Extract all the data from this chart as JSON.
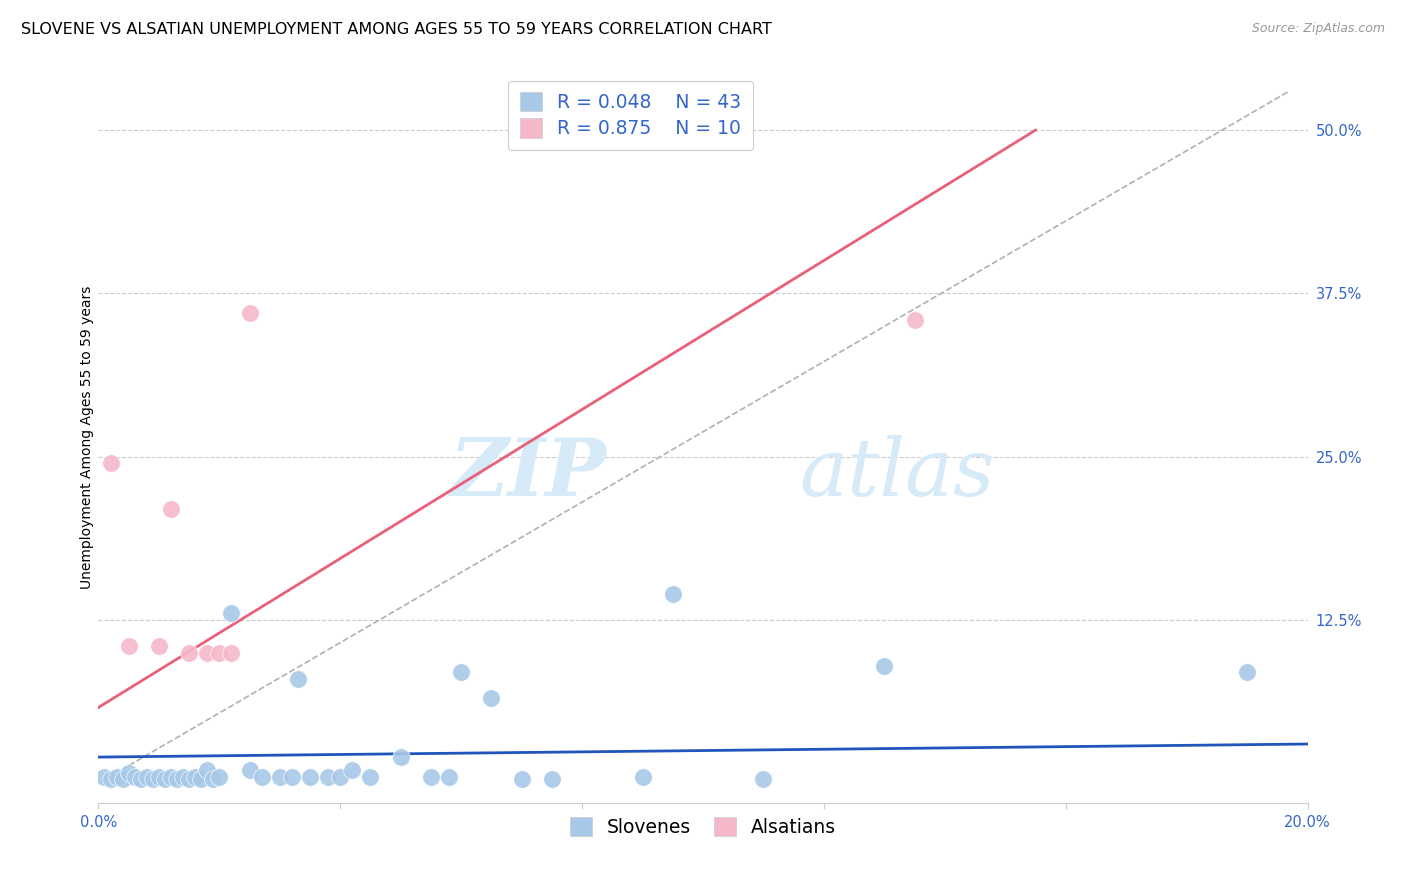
{
  "title": "SLOVENE VS ALSATIAN UNEMPLOYMENT AMONG AGES 55 TO 59 YEARS CORRELATION CHART",
  "source": "Source: ZipAtlas.com",
  "ylabel": "Unemployment Among Ages 55 to 59 years",
  "xlim": [
    0.0,
    0.2
  ],
  "ylim": [
    -0.015,
    0.545
  ],
  "xticks": [
    0.0,
    0.04,
    0.08,
    0.12,
    0.16,
    0.2
  ],
  "ytick_positions": [
    0.125,
    0.25,
    0.375,
    0.5
  ],
  "yticklabels": [
    "12.5%",
    "25.0%",
    "37.5%",
    "50.0%"
  ],
  "grid_color": "#cccccc",
  "watermark_zip": "ZIP",
  "watermark_atlas": "atlas",
  "watermark_color": "#d6eaf8",
  "slovene_color": "#a8c8e8",
  "alsatian_color": "#f5b8c8",
  "slovene_line_color": "#2255bb",
  "alsatian_line_color": "#e8607a",
  "trendline_color_dashed": "#b0b0b0",
  "legend_text_color": "#3366cc",
  "legend_R_slovene": "R = 0.048",
  "legend_N_slovene": "N = 43",
  "legend_R_alsatian": "R = 0.875",
  "legend_N_alsatian": "N = 10",
  "slovene_points_x": [
    0.001,
    0.002,
    0.003,
    0.004,
    0.005,
    0.006,
    0.007,
    0.008,
    0.009,
    0.01,
    0.011,
    0.012,
    0.013,
    0.014,
    0.015,
    0.016,
    0.017,
    0.018,
    0.019,
    0.02,
    0.022,
    0.025,
    0.027,
    0.03,
    0.032,
    0.033,
    0.035,
    0.038,
    0.04,
    0.042,
    0.045,
    0.05,
    0.055,
    0.058,
    0.06,
    0.065,
    0.07,
    0.075,
    0.09,
    0.095,
    0.11,
    0.13,
    0.19
  ],
  "slovene_points_y": [
    0.005,
    0.003,
    0.005,
    0.003,
    0.008,
    0.005,
    0.003,
    0.005,
    0.003,
    0.005,
    0.003,
    0.005,
    0.003,
    0.005,
    0.003,
    0.005,
    0.003,
    0.01,
    0.003,
    0.005,
    0.13,
    0.01,
    0.005,
    0.005,
    0.005,
    0.08,
    0.005,
    0.005,
    0.005,
    0.01,
    0.005,
    0.02,
    0.005,
    0.005,
    0.085,
    0.065,
    0.003,
    0.003,
    0.005,
    0.145,
    0.003,
    0.09,
    0.085
  ],
  "alsatian_points_x": [
    0.002,
    0.005,
    0.01,
    0.012,
    0.015,
    0.018,
    0.02,
    0.022,
    0.025,
    0.135
  ],
  "alsatian_points_y": [
    0.245,
    0.105,
    0.105,
    0.21,
    0.1,
    0.1,
    0.1,
    0.1,
    0.36,
    0.355
  ],
  "slovene_trend_x": [
    0.0,
    0.2
  ],
  "slovene_trend_y": [
    0.02,
    0.03
  ],
  "alsatian_trend_x": [
    0.0,
    0.155
  ],
  "alsatian_trend_y": [
    0.058,
    0.5
  ],
  "dashed_trend_x": [
    0.0,
    0.197
  ],
  "dashed_trend_y": [
    0.0,
    0.53
  ],
  "background_color": "#ffffff",
  "title_fontsize": 11.5,
  "axis_label_fontsize": 10,
  "tick_fontsize": 10.5,
  "legend_fontsize": 13.5
}
